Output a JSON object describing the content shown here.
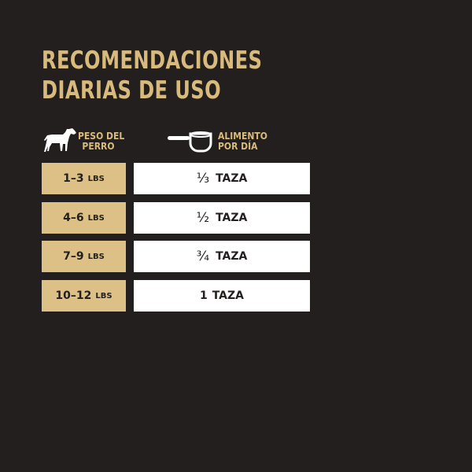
{
  "title": {
    "line1": "RECOMENDACIONES",
    "line2": "DIARIAS DE USO"
  },
  "headers": {
    "weight": {
      "icon": "dog-icon",
      "line1": "PESO DEL",
      "line2": "PERRO"
    },
    "food": {
      "icon": "measuring-cup-icon",
      "line1": "ALIMENTO",
      "line2": "POR DÍA"
    }
  },
  "rows": [
    {
      "weight": "1–3",
      "unit": "LBS",
      "amount": "⅓",
      "amount_unit": "TAZA"
    },
    {
      "weight": "4–6",
      "unit": "LBS",
      "amount": "½",
      "amount_unit": "TAZA"
    },
    {
      "weight": "7–9",
      "unit": "LBS",
      "amount": "¾",
      "amount_unit": "TAZA"
    },
    {
      "weight": "10–12",
      "unit": "LBS",
      "amount": "1",
      "amount_unit": "TAZA"
    }
  ],
  "colors": {
    "background": "#231f1f",
    "gold": "#d8bb7c",
    "cell_gold": "#dcc085",
    "cell_white": "#ffffff"
  }
}
